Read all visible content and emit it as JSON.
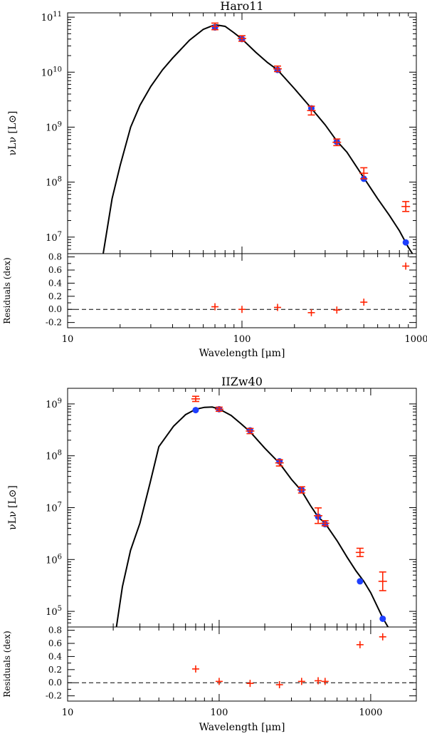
{
  "chart_data": [
    {
      "type": "scatter",
      "title": "Haro11",
      "ylabel": "νLν [L⊙]",
      "xlabel": "Wavelength [μm]",
      "xscale": "log",
      "yscale": "log",
      "xlim": [
        10,
        1000
      ],
      "ylim": [
        5000000,
        120000000000
      ],
      "xticks": [
        {
          "v": 10,
          "label": "10"
        },
        {
          "v": 100,
          "label": "100"
        },
        {
          "v": 1000,
          "label": "1000"
        }
      ],
      "yticks": [
        {
          "v": 10000000,
          "base": "10",
          "exp": "7"
        },
        {
          "v": 100000000,
          "base": "10",
          "exp": "8"
        },
        {
          "v": 1000000000,
          "base": "10",
          "exp": "9"
        },
        {
          "v": 10000000000,
          "base": "10",
          "exp": "10"
        },
        {
          "v": 100000000000,
          "base": "10",
          "exp": "11"
        }
      ],
      "model_curve": {
        "x": [
          16,
          18,
          20,
          23,
          26,
          30,
          35,
          40,
          50,
          60,
          70,
          80,
          90,
          100,
          120,
          140,
          160,
          200,
          250,
          300,
          350,
          400,
          500,
          600,
          700,
          800,
          900,
          950
        ],
        "y": [
          5000000,
          50000000,
          200000000,
          1000000000,
          2500000000,
          5500000000,
          11000000000,
          18000000000,
          38000000000,
          60000000000,
          73000000000,
          68000000000,
          52000000000,
          40000000000,
          23000000000,
          15000000000,
          11000000000,
          5000000000,
          2200000000,
          1100000000,
          560000000,
          350000000,
          120000000,
          50000000,
          25000000,
          13000000,
          6500000,
          5000000
        ]
      },
      "model_points": {
        "x": [
          70,
          100,
          160,
          250,
          350,
          500,
          870
        ],
        "y": [
          65000000000,
          40000000000,
          11000000000,
          2200000000,
          540000000,
          115000000,
          8000000
        ]
      },
      "observed": {
        "x": [
          70,
          100,
          160,
          250,
          350,
          500,
          870
        ],
        "y": [
          68000000000,
          41000000000,
          11500000000,
          2000000000,
          530000000,
          145000000,
          36000000
        ],
        "err": [
          0.06,
          0.05,
          0.05,
          0.08,
          0.06,
          0.1,
          0.09
        ]
      },
      "residuals": {
        "label": "Residuals (dex)",
        "ylim": [
          -0.28,
          0.85
        ],
        "yticks": [
          {
            "v": -0.2,
            "label": "-0.2"
          },
          {
            "v": 0,
            "label": "0.0"
          },
          {
            "v": 0.2,
            "label": "0.2"
          },
          {
            "v": 0.4,
            "label": "0.4"
          },
          {
            "v": 0.6,
            "label": "0.6"
          },
          {
            "v": 0.8,
            "label": "0.8"
          }
        ],
        "x": [
          70,
          100,
          160,
          250,
          350,
          500,
          870
        ],
        "y": [
          0.04,
          0.0,
          0.03,
          -0.05,
          -0.01,
          0.11,
          0.66
        ]
      }
    },
    {
      "type": "scatter",
      "title": "IIZw40",
      "ylabel": "νLν [L⊙]",
      "xlabel": "Wavelength [μm]",
      "xscale": "log",
      "yscale": "log",
      "xlim": [
        10,
        2000
      ],
      "ylim": [
        50000,
        2000000000
      ],
      "xticks": [
        {
          "v": 10,
          "label": "10"
        },
        {
          "v": 100,
          "label": "100"
        },
        {
          "v": 1000,
          "label": "1000"
        }
      ],
      "yticks": [
        {
          "v": 100000,
          "base": "10",
          "exp": "5"
        },
        {
          "v": 1000000,
          "base": "10",
          "exp": "6"
        },
        {
          "v": 10000000,
          "base": "10",
          "exp": "7"
        },
        {
          "v": 100000000,
          "base": "10",
          "exp": "8"
        },
        {
          "v": 1000000000,
          "base": "10",
          "exp": "9"
        }
      ],
      "model_curve": {
        "x": [
          21,
          23,
          26,
          30,
          35,
          40,
          50,
          60,
          70,
          80,
          90,
          100,
          120,
          140,
          160,
          200,
          250,
          300,
          350,
          400,
          450,
          500,
          600,
          700,
          800,
          900,
          1000,
          1200,
          1300
        ],
        "y": [
          50000,
          300000,
          1500000,
          5000000,
          30000000,
          150000000,
          370000000,
          620000000,
          790000000,
          860000000,
          870000000,
          800000000,
          600000000,
          410000000,
          290000000,
          140000000,
          72000000,
          35000000,
          21000000,
          11000000,
          6600000,
          5000000,
          2300000,
          1100000,
          600000,
          380000,
          230000,
          75000,
          50000
        ]
      },
      "model_points": {
        "x": [
          70,
          100,
          160,
          250,
          350,
          450,
          500,
          850,
          1200
        ],
        "y": [
          760000000,
          790000000,
          310000000,
          78000000,
          22000000,
          6700000,
          4800000,
          380000,
          72000
        ]
      },
      "observed": {
        "x": [
          70,
          100,
          160,
          250,
          350,
          450,
          500,
          850,
          1200
        ],
        "y": [
          1250000000,
          790000000,
          300000000,
          73000000,
          22000000,
          7000000,
          5000000,
          1370000,
          380000
        ],
        "err": [
          0.05,
          0.04,
          0.05,
          0.06,
          0.06,
          0.15,
          0.05,
          0.08,
          0.18
        ]
      },
      "residuals": {
        "label": "Residuals (dex)",
        "ylim": [
          -0.28,
          0.85
        ],
        "yticks": [
          {
            "v": -0.2,
            "label": "-0.2"
          },
          {
            "v": 0,
            "label": "0.0"
          },
          {
            "v": 0.2,
            "label": "0.2"
          },
          {
            "v": 0.4,
            "label": "0.4"
          },
          {
            "v": 0.6,
            "label": "0.6"
          },
          {
            "v": 0.8,
            "label": "0.8"
          }
        ],
        "x": [
          70,
          100,
          160,
          250,
          350,
          450,
          500,
          850,
          1200
        ],
        "y": [
          0.21,
          0.02,
          -0.01,
          -0.03,
          0.02,
          0.03,
          0.02,
          0.58,
          0.7
        ]
      }
    }
  ],
  "colors": {
    "model_curve": "#000000",
    "model_points": "#1f3fff",
    "observed": "#ff2200",
    "zero_line": "#000000"
  }
}
